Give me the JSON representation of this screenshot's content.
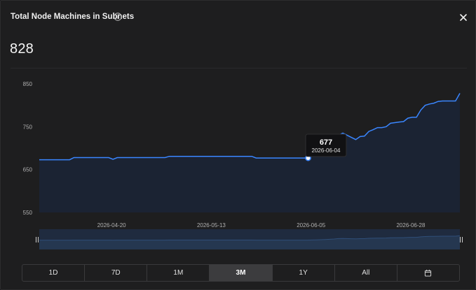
{
  "header": {
    "title": "Total Node Machines in Subnets",
    "info_icon": "info-circle-icon",
    "close_icon": "close-icon"
  },
  "summary": {
    "value": "828"
  },
  "tooltip": {
    "value": "677",
    "date": "2026-06-04"
  },
  "ranges": [
    {
      "label": "1D",
      "active": false
    },
    {
      "label": "7D",
      "active": false
    },
    {
      "label": "1M",
      "active": false
    },
    {
      "label": "3M",
      "active": true
    },
    {
      "label": "1Y",
      "active": false
    },
    {
      "label": "All",
      "active": false
    },
    {
      "label": "",
      "icon": "calendar-icon",
      "active": false
    }
  ],
  "colors": {
    "line": "#3a86ff",
    "area": "#1b2333",
    "marker_fill": "#ffffff",
    "navigator_fill": "#1f2b3f"
  },
  "chart_data": {
    "type": "area",
    "ylim": [
      550,
      850
    ],
    "yticks": [
      "850",
      "750",
      "650",
      "550"
    ],
    "xticks": [
      "2026-04-20",
      "2026-05-13",
      "2026-06-05",
      "2026-06-28"
    ],
    "xrange": [
      "2026-04-03",
      "2026-07-09"
    ],
    "grid": false,
    "series": [
      {
        "x": [
          "2026-04-03",
          "2026-04-10",
          "2026-04-11",
          "2026-04-19",
          "2026-04-20",
          "2026-04-21",
          "2026-05-02",
          "2026-05-03",
          "2026-05-22",
          "2026-05-23",
          "2026-06-04",
          "2026-06-05",
          "2026-06-06",
          "2026-06-08",
          "2026-06-10",
          "2026-06-11",
          "2026-06-12",
          "2026-06-14",
          "2026-06-15",
          "2026-06-16",
          "2026-06-17",
          "2026-06-18",
          "2026-06-19",
          "2026-06-20",
          "2026-06-21",
          "2026-06-22",
          "2026-06-23",
          "2026-06-25",
          "2026-06-26",
          "2026-06-27",
          "2026-06-28",
          "2026-06-29",
          "2026-06-30",
          "2026-07-01",
          "2026-07-02",
          "2026-07-03",
          "2026-07-04",
          "2026-07-05",
          "2026-07-08",
          "2026-07-09"
        ],
        "y": [
          673,
          673,
          678,
          678,
          674,
          678,
          678,
          681,
          681,
          677,
          677,
          683,
          688,
          700,
          715,
          730,
          735,
          725,
          720,
          727,
          728,
          739,
          743,
          748,
          748,
          750,
          758,
          761,
          762,
          770,
          772,
          772,
          789,
          800,
          803,
          805,
          809,
          810,
          810,
          828
        ]
      }
    ],
    "marker": {
      "x": "2026-06-04",
      "y": 677
    }
  }
}
